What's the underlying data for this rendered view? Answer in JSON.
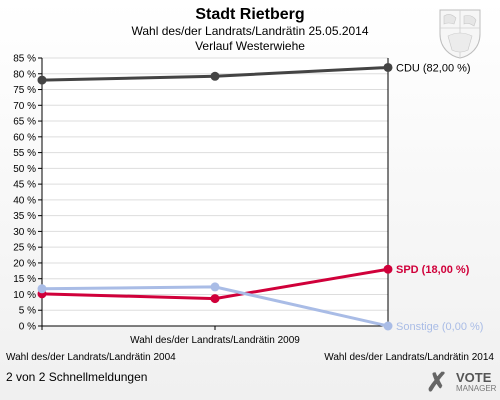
{
  "header": {
    "title": "Stadt Rietberg",
    "subtitle": "Wahl des/der Landrats/Landrätin 25.05.2014",
    "subtitle2": "Verlauf Westerwiehe"
  },
  "footer": {
    "meldungen": "2 von 2 Schnellmeldungen"
  },
  "logo": {
    "line1": "VOTE",
    "line2": "MANAGER"
  },
  "colors": {
    "cdu": "#444444",
    "spd": "#d0003a",
    "sonstige": "#a9bce6",
    "grid": "#dddddd"
  },
  "chart_data": {
    "type": "line",
    "title": "Stadt Rietberg",
    "x": [
      "Wahl des/der Landrats/Landrätin 2004",
      "Wahl des/der Landrats/Landrätin 2009",
      "Wahl des/der Landrats/Landrätin 2014"
    ],
    "ylim": [
      0,
      85
    ],
    "yticks": [
      "0 %",
      "5 %",
      "10 %",
      "15 %",
      "20 %",
      "25 %",
      "30 %",
      "35 %",
      "40 %",
      "45 %",
      "50 %",
      "55 %",
      "60 %",
      "65 %",
      "70 %",
      "75 %",
      "80 %",
      "85 %"
    ],
    "grid": true,
    "series": [
      {
        "name": "CDU",
        "values": [
          78.0,
          79.2,
          82.0
        ],
        "label": "CDU (82,00 %)"
      },
      {
        "name": "SPD",
        "values": [
          10.2,
          8.7,
          18.0
        ],
        "label": "SPD (18,00 %)"
      },
      {
        "name": "Sonstige",
        "values": [
          11.8,
          12.4,
          0.0
        ],
        "label": "Sonstige (0,00 %)"
      }
    ]
  }
}
